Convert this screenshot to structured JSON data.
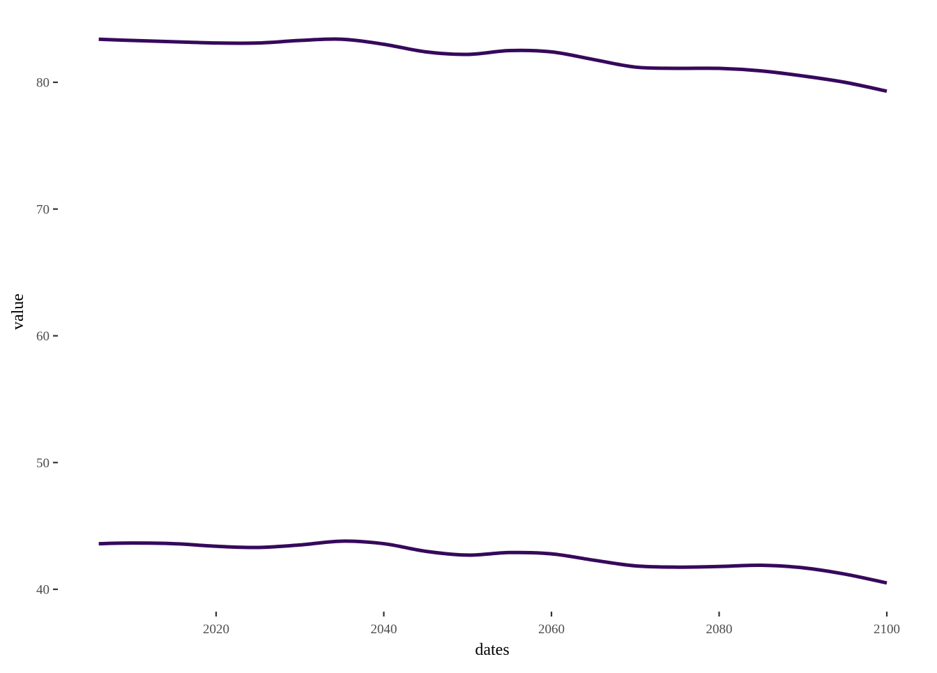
{
  "chart_data": {
    "type": "line",
    "title": "",
    "xlabel": "dates",
    "ylabel": "value",
    "x_ticks": [
      2020,
      2040,
      2060,
      2080,
      2100
    ],
    "y_ticks": [
      40,
      50,
      60,
      70,
      80
    ],
    "xlim": [
      2005,
      2100
    ],
    "ylim": [
      38.5,
      84.5
    ],
    "grid": false,
    "legend": "none",
    "line_color": "#36095C",
    "series": [
      {
        "x": [
          2006,
          2010,
          2015,
          2020,
          2025,
          2030,
          2035,
          2040,
          2045,
          2050,
          2055,
          2060,
          2065,
          2070,
          2075,
          2080,
          2085,
          2090,
          2095,
          2100
        ],
        "values": [
          83.4,
          83.3,
          83.2,
          83.1,
          83.1,
          83.3,
          83.4,
          83.0,
          82.4,
          82.2,
          82.5,
          82.4,
          81.8,
          81.2,
          81.1,
          81.1,
          80.9,
          80.5,
          80.0,
          79.3
        ]
      },
      {
        "x": [
          2006,
          2010,
          2015,
          2020,
          2025,
          2030,
          2035,
          2040,
          2045,
          2050,
          2055,
          2060,
          2065,
          2070,
          2075,
          2080,
          2085,
          2090,
          2095,
          2100
        ],
        "values": [
          43.6,
          43.65,
          43.6,
          43.4,
          43.3,
          43.5,
          43.8,
          43.6,
          43.0,
          42.7,
          42.9,
          42.8,
          42.3,
          41.85,
          41.75,
          41.8,
          41.9,
          41.7,
          41.2,
          40.5
        ]
      }
    ]
  }
}
